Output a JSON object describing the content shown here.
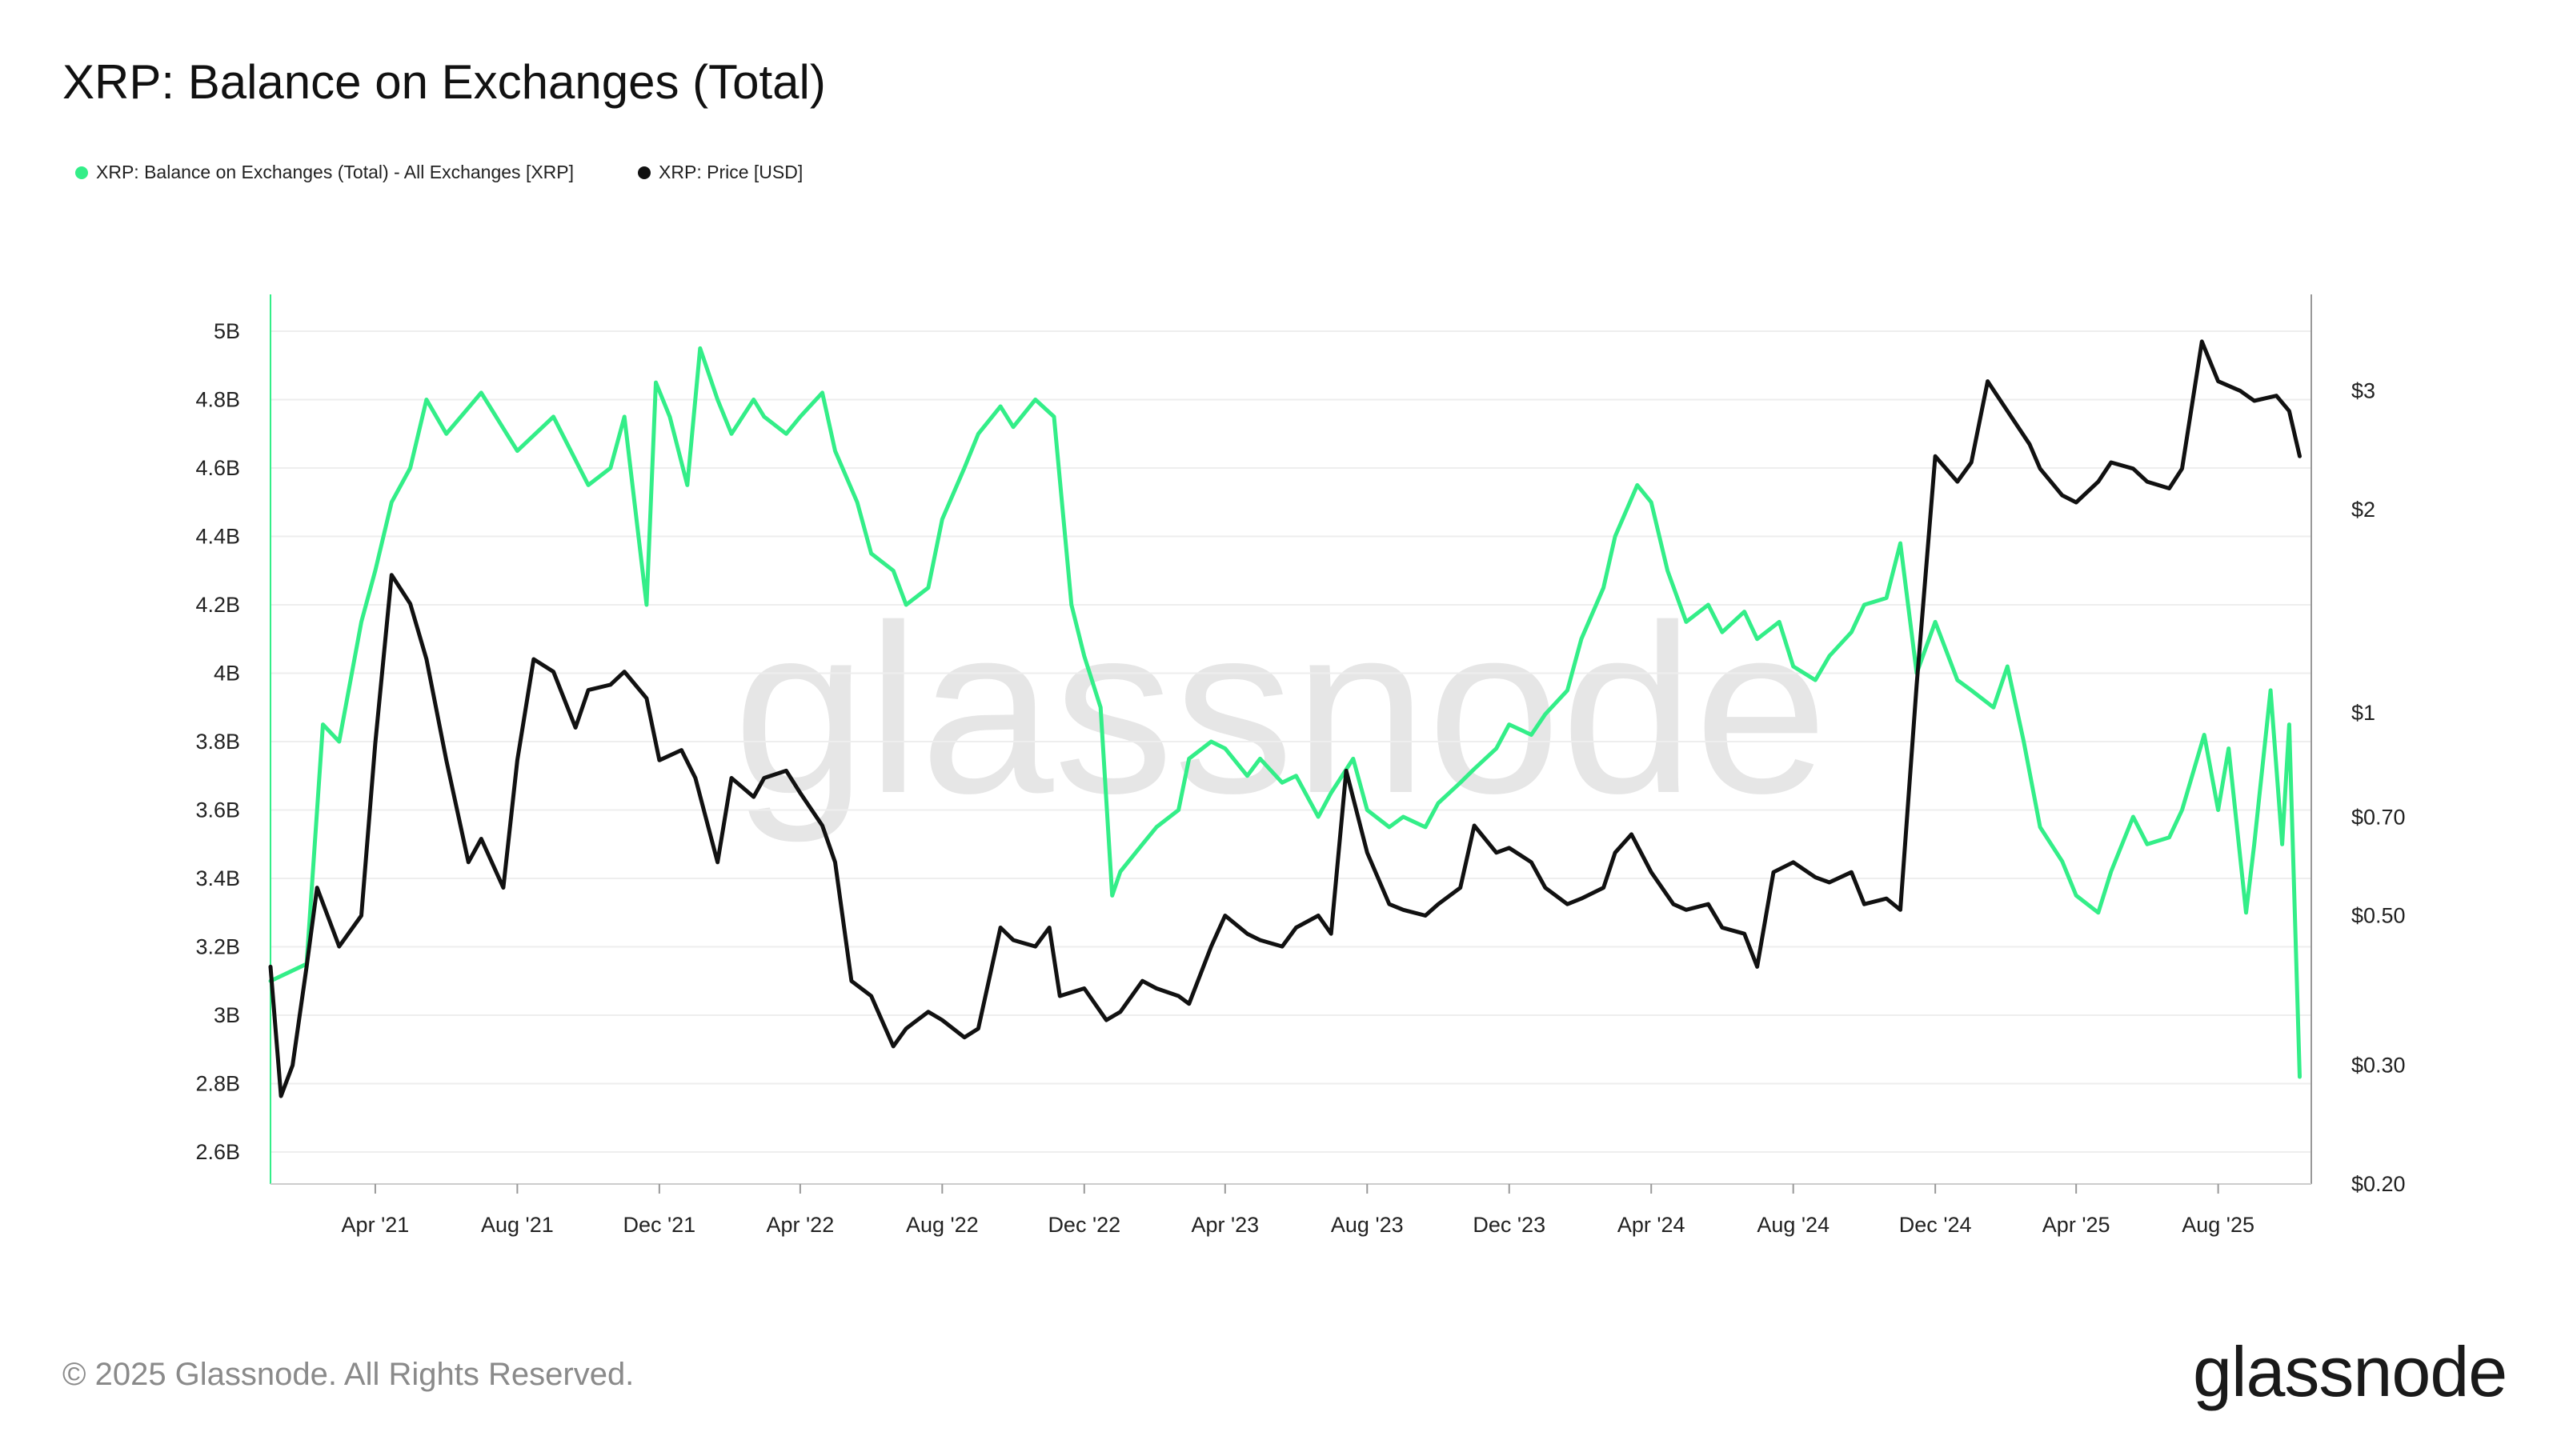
{
  "title": "XRP: Balance on Exchanges (Total)",
  "legend": [
    {
      "label": "XRP: Balance on Exchanges (Total) - All Exchanges [XRP]",
      "color": "#33ee88"
    },
    {
      "label": "XRP: Price [USD]",
      "color": "#111111"
    }
  ],
  "watermark": "glassnode",
  "footer": {
    "copyright": "© 2025 Glassnode. All Rights Reserved.",
    "logo": "glassnode"
  },
  "chart_data": {
    "type": "line",
    "title": "XRP: Balance on Exchanges (Total)",
    "x_ticks": [
      "Apr '21",
      "Aug '21",
      "Dec '21",
      "Apr '22",
      "Aug '22",
      "Dec '22",
      "Apr '23",
      "Aug '23",
      "Dec '23",
      "Apr '24",
      "Aug '24",
      "Dec '24",
      "Apr '25",
      "Aug '25"
    ],
    "x_range": [
      "2021-01",
      "2025-10"
    ],
    "y_left": {
      "ticks": [
        "5B",
        "4.8B",
        "4.6B",
        "4.4B",
        "4.2B",
        "4B",
        "3.8B",
        "3.6B",
        "3.4B",
        "3.2B",
        "3B",
        "2.8B",
        "2.6B"
      ],
      "range": [
        2.5,
        5.1
      ],
      "unit": "B XRP"
    },
    "y_right": {
      "ticks": [
        "$3",
        "$2",
        "$1",
        "$0.70",
        "$0.50",
        "$0.30",
        "$0.20"
      ],
      "scale": "log",
      "range": [
        0.2,
        3.6
      ]
    },
    "grid": true,
    "series": [
      {
        "name": "XRP: Balance on Exchanges (Total) - All Exchanges [XRP]",
        "axis": "left",
        "color": "#33ee88",
        "points": [
          [
            "2021-01",
            3.1
          ],
          [
            "2021-02",
            3.15
          ],
          [
            "2021-02-15",
            3.85
          ],
          [
            "2021-03",
            3.8
          ],
          [
            "2021-03-20",
            4.15
          ],
          [
            "2021-04",
            4.3
          ],
          [
            "2021-04-15",
            4.5
          ],
          [
            "2021-05",
            4.6
          ],
          [
            "2021-05-15",
            4.8
          ],
          [
            "2021-06",
            4.7
          ],
          [
            "2021-07",
            4.82
          ],
          [
            "2021-08",
            4.65
          ],
          [
            "2021-09",
            4.75
          ],
          [
            "2021-10",
            4.55
          ],
          [
            "2021-10-20",
            4.6
          ],
          [
            "2021-11",
            4.75
          ],
          [
            "2021-11-20",
            4.2
          ],
          [
            "2021-11-28",
            4.85
          ],
          [
            "2021-12-10",
            4.75
          ],
          [
            "2021-12-25",
            4.55
          ],
          [
            "2022-01-05",
            4.95
          ],
          [
            "2022-01-20",
            4.8
          ],
          [
            "2022-02",
            4.7
          ],
          [
            "2022-02-20",
            4.8
          ],
          [
            "2022-03",
            4.75
          ],
          [
            "2022-03-20",
            4.7
          ],
          [
            "2022-04",
            4.75
          ],
          [
            "2022-04-20",
            4.82
          ],
          [
            "2022-05",
            4.65
          ],
          [
            "2022-05-20",
            4.5
          ],
          [
            "2022-06",
            4.35
          ],
          [
            "2022-06-20",
            4.3
          ],
          [
            "2022-07",
            4.2
          ],
          [
            "2022-07-20",
            4.25
          ],
          [
            "2022-08",
            4.45
          ],
          [
            "2022-08-20",
            4.6
          ],
          [
            "2022-09",
            4.7
          ],
          [
            "2022-09-20",
            4.78
          ],
          [
            "2022-10",
            4.72
          ],
          [
            "2022-10-20",
            4.8
          ],
          [
            "2022-11-05",
            4.75
          ],
          [
            "2022-11-20",
            4.2
          ],
          [
            "2022-12",
            4.05
          ],
          [
            "2022-12-15",
            3.9
          ],
          [
            "2022-12-25",
            3.35
          ],
          [
            "2023-01",
            3.42
          ],
          [
            "2023-01-20",
            3.5
          ],
          [
            "2023-02",
            3.55
          ],
          [
            "2023-02-20",
            3.6
          ],
          [
            "2023-03",
            3.75
          ],
          [
            "2023-03-20",
            3.8
          ],
          [
            "2023-04",
            3.78
          ],
          [
            "2023-04-20",
            3.7
          ],
          [
            "2023-05",
            3.75
          ],
          [
            "2023-05-20",
            3.68
          ],
          [
            "2023-06",
            3.7
          ],
          [
            "2023-06-20",
            3.58
          ],
          [
            "2023-07",
            3.65
          ],
          [
            "2023-07-20",
            3.75
          ],
          [
            "2023-08",
            3.6
          ],
          [
            "2023-08-20",
            3.55
          ],
          [
            "2023-09",
            3.58
          ],
          [
            "2023-09-20",
            3.55
          ],
          [
            "2023-10",
            3.62
          ],
          [
            "2023-10-20",
            3.68
          ],
          [
            "2023-11",
            3.72
          ],
          [
            "2023-11-20",
            3.78
          ],
          [
            "2023-12",
            3.85
          ],
          [
            "2023-12-20",
            3.82
          ],
          [
            "2024-01",
            3.88
          ],
          [
            "2024-01-20",
            3.95
          ],
          [
            "2024-02",
            4.1
          ],
          [
            "2024-02-20",
            4.25
          ],
          [
            "2024-03",
            4.4
          ],
          [
            "2024-03-20",
            4.55
          ],
          [
            "2024-04",
            4.5
          ],
          [
            "2024-04-15",
            4.3
          ],
          [
            "2024-05",
            4.15
          ],
          [
            "2024-05-20",
            4.2
          ],
          [
            "2024-06",
            4.12
          ],
          [
            "2024-06-20",
            4.18
          ],
          [
            "2024-07",
            4.1
          ],
          [
            "2024-07-20",
            4.15
          ],
          [
            "2024-08",
            4.02
          ],
          [
            "2024-08-20",
            3.98
          ],
          [
            "2024-09",
            4.05
          ],
          [
            "2024-09-20",
            4.12
          ],
          [
            "2024-10",
            4.2
          ],
          [
            "2024-10-20",
            4.22
          ],
          [
            "2024-11",
            4.38
          ],
          [
            "2024-11-15",
            4.0
          ],
          [
            "2024-12",
            4.15
          ],
          [
            "2024-12-20",
            3.98
          ],
          [
            "2025-01",
            3.95
          ],
          [
            "2025-01-20",
            3.9
          ],
          [
            "2025-02",
            4.02
          ],
          [
            "2025-02-15",
            3.8
          ],
          [
            "2025-03",
            3.55
          ],
          [
            "2025-03-20",
            3.45
          ],
          [
            "2025-04",
            3.35
          ],
          [
            "2025-04-20",
            3.3
          ],
          [
            "2025-05",
            3.42
          ],
          [
            "2025-05-20",
            3.58
          ],
          [
            "2025-06",
            3.5
          ],
          [
            "2025-06-20",
            3.52
          ],
          [
            "2025-07",
            3.6
          ],
          [
            "2025-07-20",
            3.82
          ],
          [
            "2025-08",
            3.6
          ],
          [
            "2025-08-10",
            3.78
          ],
          [
            "2025-08-25",
            3.3
          ],
          [
            "2025-09",
            3.5
          ],
          [
            "2025-09-15",
            3.95
          ],
          [
            "2025-09-25",
            3.5
          ],
          [
            "2025-10",
            3.85
          ],
          [
            "2025-10-10",
            2.82
          ]
        ]
      },
      {
        "name": "XRP: Price [USD]",
        "axis": "right",
        "color": "#111111",
        "points": [
          [
            "2021-01",
            0.42
          ],
          [
            "2021-01-10",
            0.27
          ],
          [
            "2021-01-20",
            0.3
          ],
          [
            "2021-02",
            0.42
          ],
          [
            "2021-02-10",
            0.55
          ],
          [
            "2021-03",
            0.45
          ],
          [
            "2021-03-20",
            0.5
          ],
          [
            "2021-04",
            0.9
          ],
          [
            "2021-04-15",
            1.6
          ],
          [
            "2021-05",
            1.45
          ],
          [
            "2021-05-15",
            1.2
          ],
          [
            "2021-06",
            0.85
          ],
          [
            "2021-06-20",
            0.6
          ],
          [
            "2021-07",
            0.65
          ],
          [
            "2021-07-20",
            0.55
          ],
          [
            "2021-08",
            0.85
          ],
          [
            "2021-08-15",
            1.2
          ],
          [
            "2021-09",
            1.15
          ],
          [
            "2021-09-20",
            0.95
          ],
          [
            "2021-10",
            1.08
          ],
          [
            "2021-10-20",
            1.1
          ],
          [
            "2021-11",
            1.15
          ],
          [
            "2021-11-20",
            1.05
          ],
          [
            "2021-12",
            0.85
          ],
          [
            "2021-12-20",
            0.88
          ],
          [
            "2022-01",
            0.8
          ],
          [
            "2022-01-20",
            0.6
          ],
          [
            "2022-02",
            0.8
          ],
          [
            "2022-02-20",
            0.75
          ],
          [
            "2022-03",
            0.8
          ],
          [
            "2022-03-20",
            0.82
          ],
          [
            "2022-04",
            0.76
          ],
          [
            "2022-04-20",
            0.68
          ],
          [
            "2022-05",
            0.6
          ],
          [
            "2022-05-15",
            0.4
          ],
          [
            "2022-06",
            0.38
          ],
          [
            "2022-06-20",
            0.32
          ],
          [
            "2022-07",
            0.34
          ],
          [
            "2022-07-20",
            0.36
          ],
          [
            "2022-08",
            0.35
          ],
          [
            "2022-08-20",
            0.33
          ],
          [
            "2022-09",
            0.34
          ],
          [
            "2022-09-20",
            0.48
          ],
          [
            "2022-10",
            0.46
          ],
          [
            "2022-10-20",
            0.45
          ],
          [
            "2022-11",
            0.48
          ],
          [
            "2022-11-10",
            0.38
          ],
          [
            "2022-12",
            0.39
          ],
          [
            "2022-12-20",
            0.35
          ],
          [
            "2023-01",
            0.36
          ],
          [
            "2023-01-20",
            0.4
          ],
          [
            "2023-02",
            0.39
          ],
          [
            "2023-02-20",
            0.38
          ],
          [
            "2023-03",
            0.37
          ],
          [
            "2023-03-20",
            0.45
          ],
          [
            "2023-04",
            0.5
          ],
          [
            "2023-04-20",
            0.47
          ],
          [
            "2023-05",
            0.46
          ],
          [
            "2023-05-20",
            0.45
          ],
          [
            "2023-06",
            0.48
          ],
          [
            "2023-06-20",
            0.5
          ],
          [
            "2023-07",
            0.47
          ],
          [
            "2023-07-14",
            0.82
          ],
          [
            "2023-08",
            0.62
          ],
          [
            "2023-08-20",
            0.52
          ],
          [
            "2023-09",
            0.51
          ],
          [
            "2023-09-20",
            0.5
          ],
          [
            "2023-10",
            0.52
          ],
          [
            "2023-10-20",
            0.55
          ],
          [
            "2023-11",
            0.68
          ],
          [
            "2023-11-20",
            0.62
          ],
          [
            "2023-12",
            0.63
          ],
          [
            "2023-12-20",
            0.6
          ],
          [
            "2024-01",
            0.55
          ],
          [
            "2024-01-20",
            0.52
          ],
          [
            "2024-02",
            0.53
          ],
          [
            "2024-02-20",
            0.55
          ],
          [
            "2024-03",
            0.62
          ],
          [
            "2024-03-15",
            0.66
          ],
          [
            "2024-04",
            0.58
          ],
          [
            "2024-04-20",
            0.52
          ],
          [
            "2024-05",
            0.51
          ],
          [
            "2024-05-20",
            0.52
          ],
          [
            "2024-06",
            0.48
          ],
          [
            "2024-06-20",
            0.47
          ],
          [
            "2024-07",
            0.42
          ],
          [
            "2024-07-15",
            0.58
          ],
          [
            "2024-08",
            0.6
          ],
          [
            "2024-08-20",
            0.57
          ],
          [
            "2024-09",
            0.56
          ],
          [
            "2024-09-20",
            0.58
          ],
          [
            "2024-10",
            0.52
          ],
          [
            "2024-10-20",
            0.53
          ],
          [
            "2024-11",
            0.51
          ],
          [
            "2024-11-15",
            1.1
          ],
          [
            "2024-12",
            2.4
          ],
          [
            "2024-12-20",
            2.2
          ],
          [
            "2025-01",
            2.35
          ],
          [
            "2025-01-15",
            3.1
          ],
          [
            "2025-02",
            2.8
          ],
          [
            "2025-02-20",
            2.5
          ],
          [
            "2025-03",
            2.3
          ],
          [
            "2025-03-20",
            2.1
          ],
          [
            "2025-04",
            2.05
          ],
          [
            "2025-04-20",
            2.2
          ],
          [
            "2025-05",
            2.35
          ],
          [
            "2025-05-20",
            2.3
          ],
          [
            "2025-06",
            2.2
          ],
          [
            "2025-06-20",
            2.15
          ],
          [
            "2025-07",
            2.3
          ],
          [
            "2025-07-18",
            3.55
          ],
          [
            "2025-08",
            3.1
          ],
          [
            "2025-08-20",
            3.0
          ],
          [
            "2025-09",
            2.9
          ],
          [
            "2025-09-20",
            2.95
          ],
          [
            "2025-10",
            2.8
          ],
          [
            "2025-10-10",
            2.4
          ]
        ]
      }
    ]
  }
}
